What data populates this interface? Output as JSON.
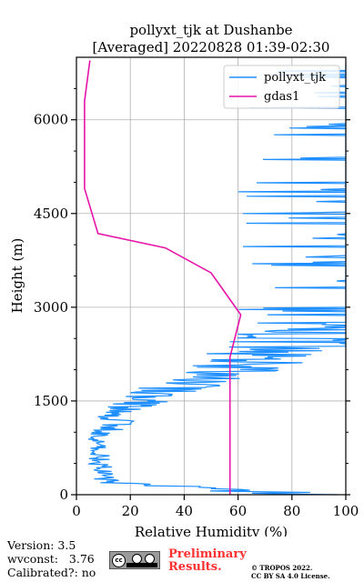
{
  "chart_data": {
    "type": "line",
    "title": [
      "pollyxt_tjk at Dushanbe",
      "[Averaged] 20220828 01:39-02:30"
    ],
    "xlabel": "Relative Humidity (%)",
    "ylabel": "Height (m)",
    "xlim": [
      0,
      100
    ],
    "ylim": [
      0,
      7000
    ],
    "xticks": [
      0,
      20,
      40,
      60,
      80,
      100
    ],
    "yticks": [
      0,
      1500,
      3000,
      4500,
      6000
    ],
    "grid": true,
    "legend_position": "top-right",
    "series": [
      {
        "name": "pollyxt_tjk",
        "color": "#1f8fff",
        "style": "noisy-profile",
        "points": [
          [
            100,
            0
          ],
          [
            57,
            60
          ],
          [
            45,
            110
          ],
          [
            30,
            150
          ],
          [
            12,
            200
          ],
          [
            9,
            300
          ],
          [
            10,
            400
          ],
          [
            8,
            500
          ],
          [
            9,
            600
          ],
          [
            7,
            700
          ],
          [
            8,
            800
          ],
          [
            6,
            900
          ],
          [
            10,
            1000
          ],
          [
            14,
            1100
          ],
          [
            16,
            1200
          ],
          [
            13,
            1300
          ],
          [
            20,
            1400
          ],
          [
            25,
            1500
          ],
          [
            30,
            1600
          ],
          [
            36,
            1700
          ],
          [
            42,
            1800
          ],
          [
            50,
            1900
          ],
          [
            55,
            2000
          ],
          [
            62,
            2100
          ],
          [
            70,
            2200
          ],
          [
            78,
            2300
          ],
          [
            85,
            2400
          ],
          [
            90,
            2500
          ],
          [
            95,
            2600
          ],
          [
            98,
            2700
          ],
          [
            100,
            2800
          ],
          [
            100,
            3500
          ],
          [
            100,
            4200
          ],
          [
            100,
            5000
          ],
          [
            100,
            6000
          ],
          [
            100,
            6900
          ]
        ]
      },
      {
        "name": "gdas1",
        "color": "#e614a8",
        "style": "line",
        "points": [
          [
            57,
            0
          ],
          [
            57,
            500
          ],
          [
            57,
            1000
          ],
          [
            57,
            1500
          ],
          [
            57,
            2000
          ],
          [
            57,
            2200
          ],
          [
            61,
            2880
          ],
          [
            50,
            3550
          ],
          [
            33,
            3950
          ],
          [
            8,
            4180
          ],
          [
            3,
            4900
          ],
          [
            3,
            5300
          ],
          [
            3,
            5800
          ],
          [
            3,
            6300
          ],
          [
            5,
            6950
          ]
        ]
      }
    ]
  },
  "footer": {
    "version": "Version: 3.5",
    "wvconst": "wvconst:   3.76",
    "calibrated": "Calibrated?: no",
    "preliminary_line1": "Preliminary",
    "preliminary_line2": "Results.",
    "copyright_line1": "© TROPOS 2022.",
    "copyright_line2": "CC BY SA 4.0 License."
  },
  "license_badge": {
    "cc": "cc",
    "colors": {
      "badge": "#9a9a9a"
    }
  }
}
